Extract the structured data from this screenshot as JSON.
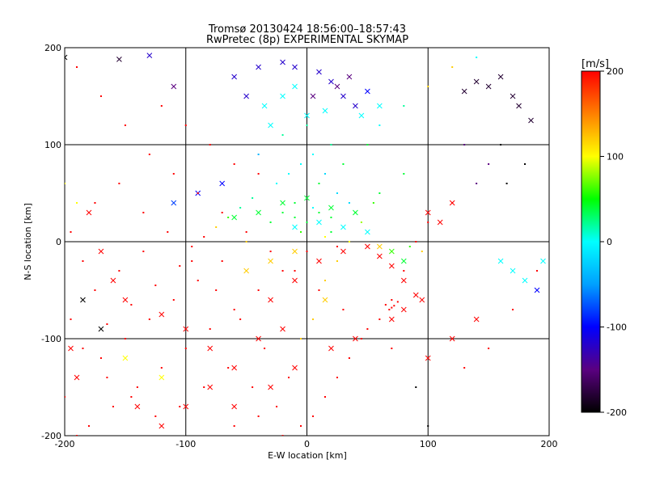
{
  "chart_data": {
    "type": "scatter",
    "title": "Tromsø 20130424 18:56:00–18:57:43",
    "subtitle": "RwPretec (8p) EXPERIMENTAL SKYMAP",
    "xlabel": "E-W location [km]",
    "ylabel": "N-S location [km]",
    "xlim": [
      -200,
      200
    ],
    "ylim": [
      -200,
      200
    ],
    "xticks": [
      "-200",
      "-100",
      "0",
      "100",
      "200"
    ],
    "yticks": [
      "-200",
      "-100",
      "0",
      "100",
      "200"
    ],
    "grid": true,
    "colorbar": {
      "unit": "[m/s]",
      "range": [
        -200,
        200
      ],
      "ticks": [
        "200",
        "100",
        "0",
        "-100",
        "-200"
      ],
      "colors": [
        "#000000",
        "#5a0080",
        "#0000ff",
        "#00a0ff",
        "#00ffff",
        "#00ff00",
        "#ffff00",
        "#ff8000",
        "#ff0000"
      ]
    },
    "marker_types": [
      "dot",
      "x"
    ],
    "series": [
      {
        "marker": "x",
        "points": [
          [
            -155,
            188,
            -180
          ],
          [
            -130,
            192,
            -120
          ],
          [
            -110,
            160,
            -150
          ],
          [
            -180,
            30,
            200
          ],
          [
            -170,
            -10,
            200
          ],
          [
            -160,
            -40,
            200
          ],
          [
            -150,
            -60,
            200
          ],
          [
            -120,
            -75,
            200
          ],
          [
            -100,
            -90,
            200
          ],
          [
            -80,
            -110,
            200
          ],
          [
            -60,
            -130,
            200
          ],
          [
            -40,
            -100,
            200
          ],
          [
            -20,
            -90,
            200
          ],
          [
            -30,
            -60,
            200
          ],
          [
            -10,
            -40,
            200
          ],
          [
            10,
            -20,
            200
          ],
          [
            30,
            -10,
            200
          ],
          [
            50,
            -5,
            200
          ],
          [
            60,
            -15,
            200
          ],
          [
            70,
            -25,
            200
          ],
          [
            80,
            -40,
            200
          ],
          [
            90,
            -55,
            200
          ],
          [
            100,
            30,
            200
          ],
          [
            110,
            20,
            200
          ],
          [
            120,
            40,
            200
          ],
          [
            -60,
            25,
            40
          ],
          [
            -40,
            30,
            40
          ],
          [
            -20,
            40,
            40
          ],
          [
            0,
            45,
            40
          ],
          [
            20,
            35,
            40
          ],
          [
            40,
            30,
            40
          ],
          [
            10,
            20,
            0
          ],
          [
            -10,
            15,
            0
          ],
          [
            30,
            15,
            0
          ],
          [
            50,
            10,
            0
          ],
          [
            60,
            -5,
            120
          ],
          [
            70,
            -10,
            60
          ],
          [
            80,
            -20,
            40
          ],
          [
            -50,
            150,
            -120
          ],
          [
            -60,
            170,
            -120
          ],
          [
            -40,
            180,
            -120
          ],
          [
            -20,
            185,
            -120
          ],
          [
            -10,
            180,
            -120
          ],
          [
            10,
            175,
            -120
          ],
          [
            20,
            165,
            -120
          ],
          [
            30,
            150,
            -120
          ],
          [
            40,
            140,
            -120
          ],
          [
            50,
            155,
            -100
          ],
          [
            35,
            170,
            -150
          ],
          [
            25,
            160,
            -150
          ],
          [
            5,
            150,
            -150
          ],
          [
            -10,
            160,
            0
          ],
          [
            -20,
            150,
            0
          ],
          [
            0,
            130,
            0
          ],
          [
            15,
            135,
            0
          ],
          [
            45,
            130,
            0
          ],
          [
            60,
            140,
            0
          ],
          [
            -35,
            140,
            0
          ],
          [
            -30,
            120,
            0
          ],
          [
            150,
            160,
            -180
          ],
          [
            170,
            150,
            -180
          ],
          [
            175,
            140,
            -180
          ],
          [
            185,
            125,
            -180
          ],
          [
            160,
            170,
            -180
          ],
          [
            140,
            165,
            -180
          ],
          [
            130,
            155,
            -180
          ],
          [
            -200,
            190,
            -200
          ],
          [
            -195,
            -110,
            200
          ],
          [
            -190,
            -140,
            200
          ],
          [
            -140,
            -170,
            200
          ],
          [
            -120,
            -190,
            200
          ],
          [
            -100,
            -170,
            200
          ],
          [
            -80,
            -150,
            200
          ],
          [
            -60,
            -170,
            200
          ],
          [
            -30,
            -150,
            200
          ],
          [
            -10,
            -130,
            200
          ],
          [
            20,
            -110,
            200
          ],
          [
            40,
            -100,
            200
          ],
          [
            70,
            -80,
            200
          ],
          [
            80,
            -70,
            200
          ],
          [
            95,
            -60,
            200
          ],
          [
            -50,
            -30,
            120
          ],
          [
            -30,
            -20,
            120
          ],
          [
            -10,
            -10,
            120
          ],
          [
            15,
            -60,
            120
          ],
          [
            -120,
            -140,
            100
          ],
          [
            -150,
            -120,
            100
          ],
          [
            -170,
            -90,
            -200
          ],
          [
            -185,
            -60,
            -200
          ],
          [
            160,
            -20,
            0
          ],
          [
            170,
            -30,
            0
          ],
          [
            180,
            -40,
            0
          ],
          [
            190,
            -50,
            -100
          ],
          [
            195,
            -20,
            0
          ],
          [
            140,
            -80,
            200
          ],
          [
            120,
            -100,
            200
          ],
          [
            100,
            -120,
            200
          ],
          [
            -70,
            60,
            -100
          ],
          [
            -90,
            50,
            -100
          ],
          [
            -110,
            40,
            -80
          ]
        ]
      },
      {
        "marker": "dot",
        "points": [
          [
            -190,
            180,
            200
          ],
          [
            -170,
            150,
            200
          ],
          [
            -150,
            120,
            200
          ],
          [
            -130,
            90,
            200
          ],
          [
            -110,
            70,
            200
          ],
          [
            -90,
            50,
            200
          ],
          [
            -70,
            30,
            200
          ],
          [
            -50,
            10,
            200
          ],
          [
            -30,
            -10,
            200
          ],
          [
            -10,
            -30,
            200
          ],
          [
            10,
            -50,
            200
          ],
          [
            30,
            -70,
            200
          ],
          [
            50,
            -90,
            200
          ],
          [
            70,
            -110,
            200
          ],
          [
            -180,
            -190,
            200
          ],
          [
            -160,
            -170,
            200
          ],
          [
            -140,
            -150,
            200
          ],
          [
            -120,
            -130,
            200
          ],
          [
            -100,
            -110,
            200
          ],
          [
            -80,
            -90,
            200
          ],
          [
            -60,
            -70,
            200
          ],
          [
            -40,
            -50,
            200
          ],
          [
            -20,
            -30,
            200
          ],
          [
            0,
            -10,
            200
          ],
          [
            20,
            10,
            40
          ],
          [
            40,
            30,
            40
          ],
          [
            60,
            50,
            40
          ],
          [
            80,
            70,
            40
          ],
          [
            -170,
            -120,
            200
          ],
          [
            -150,
            -100,
            200
          ],
          [
            -130,
            -80,
            200
          ],
          [
            -110,
            -60,
            200
          ],
          [
            -90,
            -40,
            200
          ],
          [
            -70,
            -20,
            200
          ],
          [
            -50,
            0,
            120
          ],
          [
            -30,
            20,
            40
          ],
          [
            -10,
            40,
            40
          ],
          [
            10,
            60,
            40
          ],
          [
            30,
            80,
            40
          ],
          [
            50,
            100,
            40
          ],
          [
            -20,
            110,
            20
          ],
          [
            0,
            120,
            20
          ],
          [
            20,
            100,
            20
          ],
          [
            -40,
            90,
            -40
          ],
          [
            60,
            120,
            0
          ],
          [
            80,
            140,
            20
          ],
          [
            100,
            160,
            120
          ],
          [
            120,
            180,
            120
          ],
          [
            140,
            190,
            0
          ],
          [
            160,
            100,
            -200
          ],
          [
            180,
            80,
            -200
          ],
          [
            140,
            60,
            -150
          ],
          [
            120,
            40,
            200
          ],
          [
            100,
            20,
            200
          ],
          [
            90,
            0,
            200
          ],
          [
            80,
            -30,
            200
          ],
          [
            70,
            -60,
            200
          ],
          [
            60,
            -80,
            200
          ],
          [
            45,
            -100,
            200
          ],
          [
            35,
            -120,
            200
          ],
          [
            25,
            -140,
            200
          ],
          [
            15,
            -160,
            200
          ],
          [
            5,
            -180,
            200
          ],
          [
            -5,
            -190,
            200
          ],
          [
            -25,
            -170,
            200
          ],
          [
            -45,
            -150,
            200
          ],
          [
            -65,
            -130,
            200
          ],
          [
            -85,
            -150,
            200
          ],
          [
            -105,
            -170,
            200
          ],
          [
            -125,
            -180,
            200
          ],
          [
            -145,
            -160,
            200
          ],
          [
            -165,
            -140,
            200
          ],
          [
            -185,
            -110,
            200
          ],
          [
            -195,
            -80,
            200
          ],
          [
            -175,
            -50,
            200
          ],
          [
            -155,
            -30,
            200
          ],
          [
            -135,
            -10,
            200
          ],
          [
            -115,
            10,
            200
          ],
          [
            -95,
            -20,
            200
          ],
          [
            -75,
            -50,
            200
          ],
          [
            -55,
            -80,
            200
          ],
          [
            -35,
            -110,
            200
          ],
          [
            -15,
            -140,
            200
          ],
          [
            -5,
            -100,
            120
          ],
          [
            5,
            -80,
            120
          ],
          [
            15,
            -40,
            120
          ],
          [
            25,
            -20,
            120
          ],
          [
            35,
            0,
            100
          ],
          [
            45,
            20,
            80
          ],
          [
            55,
            40,
            60
          ],
          [
            -25,
            60,
            0
          ],
          [
            -15,
            70,
            0
          ],
          [
            -5,
            80,
            0
          ],
          [
            5,
            90,
            0
          ],
          [
            15,
            70,
            -20
          ],
          [
            25,
            50,
            -20
          ],
          [
            35,
            40,
            -20
          ],
          [
            -45,
            45,
            20
          ],
          [
            -55,
            35,
            20
          ],
          [
            -65,
            25,
            60
          ],
          [
            -75,
            15,
            120
          ],
          [
            -85,
            5,
            200
          ],
          [
            -95,
            -5,
            200
          ],
          [
            -105,
            -25,
            200
          ],
          [
            -125,
            -45,
            200
          ],
          [
            -145,
            -65,
            200
          ],
          [
            -165,
            -85,
            200
          ],
          [
            -185,
            -20,
            200
          ],
          [
            -195,
            10,
            200
          ],
          [
            -175,
            40,
            200
          ],
          [
            -155,
            60,
            200
          ],
          [
            -135,
            30,
            200
          ],
          [
            0,
            20,
            40
          ],
          [
            10,
            30,
            40
          ],
          [
            -10,
            25,
            40
          ],
          [
            20,
            25,
            40
          ],
          [
            -20,
            30,
            40
          ],
          [
            5,
            35,
            0
          ],
          [
            -5,
            10,
            60
          ],
          [
            15,
            5,
            100
          ],
          [
            25,
            -5,
            200
          ],
          [
            65,
            -65,
            200
          ],
          [
            70,
            -68,
            200
          ],
          [
            72,
            -66,
            200
          ],
          [
            75,
            -62,
            200
          ],
          [
            68,
            -70,
            200
          ],
          [
            85,
            -5,
            60
          ],
          [
            95,
            -10,
            120
          ],
          [
            -200,
            -160,
            200
          ],
          [
            -190,
            -200,
            200
          ],
          [
            -60,
            -190,
            200
          ],
          [
            -40,
            -180,
            200
          ],
          [
            -20,
            -200,
            200
          ],
          [
            90,
            -150,
            -200
          ],
          [
            100,
            -190,
            -200
          ],
          [
            130,
            -130,
            200
          ],
          [
            150,
            -110,
            200
          ],
          [
            170,
            -70,
            200
          ],
          [
            190,
            -30,
            200
          ],
          [
            130,
            100,
            -150
          ],
          [
            150,
            80,
            -150
          ],
          [
            165,
            60,
            -200
          ],
          [
            -120,
            140,
            200
          ],
          [
            -100,
            120,
            200
          ],
          [
            -80,
            100,
            200
          ],
          [
            -60,
            80,
            200
          ],
          [
            -40,
            70,
            200
          ],
          [
            -200,
            60,
            100
          ],
          [
            -190,
            40,
            100
          ]
        ]
      }
    ]
  }
}
